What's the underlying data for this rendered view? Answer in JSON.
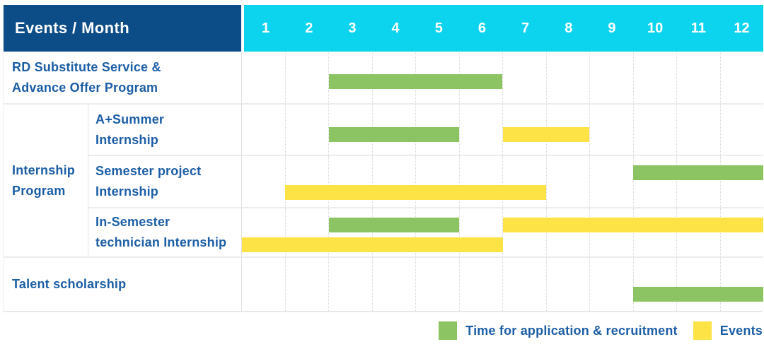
{
  "colors": {
    "navy": "#0c4d87",
    "cyan": "#0cd3ee",
    "green": "#8cc363",
    "yellow": "#fde345",
    "text_blue": "#1c5ea6"
  },
  "table": {
    "header": {
      "label": "Events / Month",
      "months": [
        "1",
        "2",
        "3",
        "4",
        "5",
        "6",
        "7",
        "8",
        "9",
        "10",
        "11",
        "12"
      ]
    },
    "group": {
      "lines": [
        "Internship",
        "Program"
      ]
    },
    "rows": [
      {
        "lines": [
          "RD Substitute Service &",
          "Advance Offer Program"
        ]
      },
      {
        "lines": [
          "A+Summer",
          "Internship"
        ]
      },
      {
        "lines": [
          "Semester project",
          "Internship"
        ]
      },
      {
        "lines": [
          "In-Semester",
          "technician Internship"
        ]
      },
      {
        "lines": [
          "Talent scholarship"
        ]
      }
    ]
  },
  "chart_data": {
    "type": "bar",
    "subtype": "gantt",
    "title": "Events / Month schedule",
    "xlabel": "Month",
    "x_range": [
      1,
      12
    ],
    "x_ticks": [
      1,
      2,
      3,
      4,
      5,
      6,
      7,
      8,
      9,
      10,
      11,
      12
    ],
    "grid": true,
    "legend_position": "bottom-right",
    "rows": [
      {
        "label": "RD Substitute Service & Advance Offer Program",
        "group": null,
        "bars": [
          {
            "category": "application",
            "color": "green",
            "start_month": 3,
            "end_month": 6,
            "lane": "middle"
          }
        ]
      },
      {
        "label": "A+Summer Internship",
        "group": "Internship Program",
        "bars": [
          {
            "category": "application",
            "color": "green",
            "start_month": 3,
            "end_month": 5,
            "lane": "middle"
          },
          {
            "category": "event",
            "color": "yellow",
            "start_month": 7,
            "end_month": 8,
            "lane": "middle"
          }
        ]
      },
      {
        "label": "Semester project Internship",
        "group": "Internship Program",
        "bars": [
          {
            "category": "application",
            "color": "green",
            "start_month": 10,
            "end_month": 12,
            "lane": "upper"
          },
          {
            "category": "event",
            "color": "yellow",
            "start_month": 2,
            "end_month": 7,
            "lane": "lower"
          }
        ]
      },
      {
        "label": "In-Semester technician Internship",
        "group": "Internship Program",
        "bars": [
          {
            "category": "application",
            "color": "green",
            "start_month": 3,
            "end_month": 5,
            "lane": "upper"
          },
          {
            "category": "event",
            "color": "yellow",
            "start_month": 7,
            "end_month": 12,
            "lane": "upper"
          },
          {
            "category": "event",
            "color": "yellow",
            "start_month": 1,
            "end_month": 6,
            "lane": "lower"
          }
        ]
      },
      {
        "label": "Talent scholarship",
        "group": null,
        "bars": [
          {
            "category": "application",
            "color": "green",
            "start_month": 10,
            "end_month": 12,
            "lane": "lower"
          }
        ]
      }
    ],
    "legend": [
      {
        "color": "green",
        "label": "Time for application & recruitment"
      },
      {
        "color": "yellow",
        "label": "Events"
      }
    ]
  }
}
